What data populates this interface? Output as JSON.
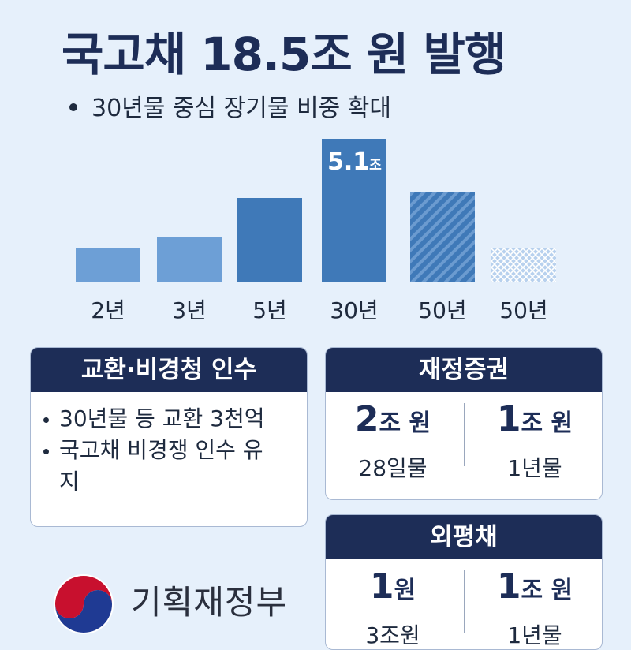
{
  "title": "국고채 18.5조 원 발행",
  "subtitle": "30년물 중심 장기물 비중 확대",
  "chart_data": {
    "type": "bar",
    "categories": [
      "2년",
      "3년",
      "5년",
      "30년",
      "50년",
      "50년"
    ],
    "values": [
      1.2,
      1.6,
      3.0,
      5.1,
      3.2,
      1.2
    ],
    "data_label": "5.1",
    "data_label_unit": "조",
    "colors": [
      "#6d9fd6",
      "#6d9fd6",
      "#3f79b8",
      "#3f79b8",
      "#3f79b8",
      "#a9c7ea"
    ],
    "patterns": [
      "solid",
      "solid",
      "solid",
      "solid",
      "diagonal",
      "crosshatch"
    ],
    "ylim": [
      0,
      5.1
    ]
  },
  "left_card": {
    "title": "교환·비경청 인수",
    "items": [
      "30년물 등 교환 3천억",
      "국고채 비경쟁 인수 유지"
    ]
  },
  "card_finance": {
    "title": "재정증권",
    "left_amount": "2",
    "left_unit": "조 원",
    "left_term": "28일물",
    "right_amount": "1",
    "right_unit": "조 원",
    "right_term": "1년물"
  },
  "card_fx": {
    "title": "외평채",
    "left_amount": "1",
    "left_unit": "원",
    "left_term": "3조원",
    "right_amount": "1",
    "right_unit": "조 원",
    "right_term": "1년물"
  },
  "footer": {
    "ministry": "기획재정부"
  }
}
